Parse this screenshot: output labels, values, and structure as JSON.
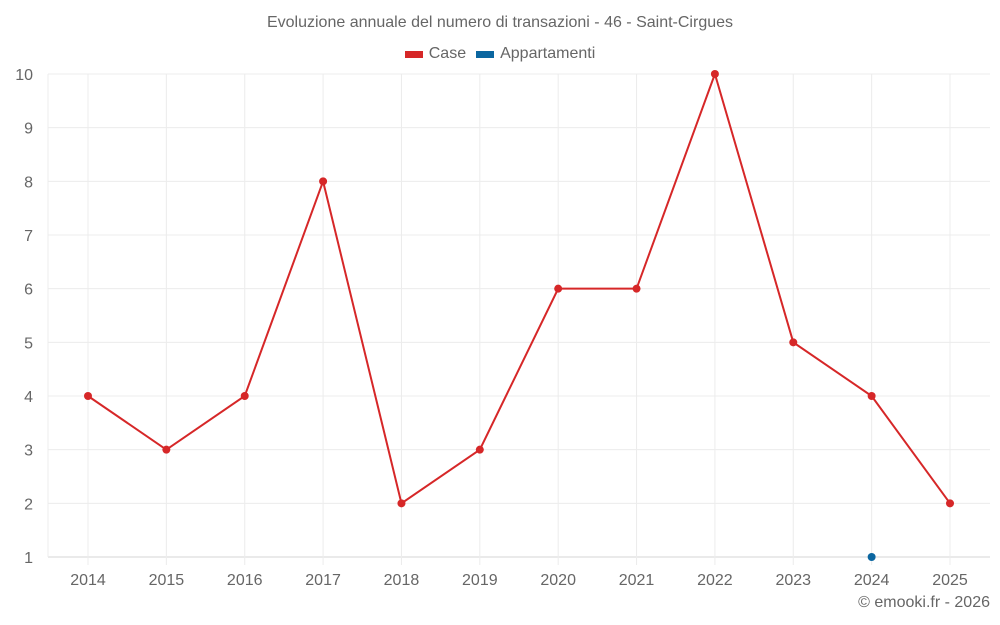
{
  "chart_data": {
    "type": "line",
    "title": "Evoluzione annuale del numero di transazioni - 46 - Saint-Cirgues",
    "xlabel": "",
    "ylabel": "",
    "categories": [
      "2014",
      "2015",
      "2016",
      "2017",
      "2018",
      "2019",
      "2020",
      "2021",
      "2022",
      "2023",
      "2024",
      "2025"
    ],
    "series": [
      {
        "name": "Case",
        "color": "#d62728",
        "values": [
          4,
          3,
          4,
          8,
          2,
          3,
          6,
          6,
          10,
          5,
          4,
          2
        ]
      },
      {
        "name": "Appartamenti",
        "color": "#0b66a0",
        "values": [
          null,
          null,
          null,
          null,
          null,
          null,
          null,
          null,
          null,
          null,
          1,
          null
        ]
      }
    ],
    "ylim": [
      1,
      10
    ],
    "yticks": [
      1,
      2,
      3,
      4,
      5,
      6,
      7,
      8,
      9,
      10
    ],
    "grid": true,
    "legend_position": "top"
  },
  "header": {
    "title": "Evoluzione annuale del numero di transazioni - 46 - Saint-Cirgues"
  },
  "legend": {
    "items": [
      {
        "label": "Case",
        "color": "#d62728"
      },
      {
        "label": "Appartamenti",
        "color": "#0b66a0"
      }
    ]
  },
  "footer": {
    "credit": "© emooki.fr - 2026"
  }
}
